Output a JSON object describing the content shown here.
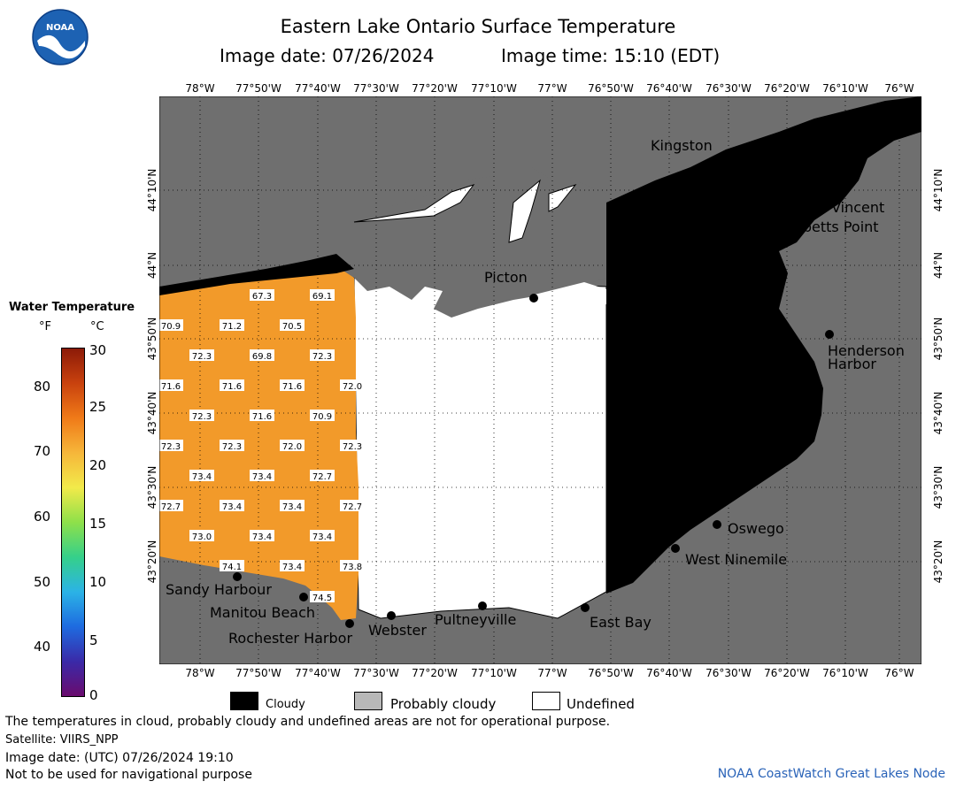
{
  "header": {
    "title": "Eastern Lake Ontario Surface Temperature",
    "image_date": "Image date: 07/26/2024",
    "image_time": "Image time: 15:10 (EDT)"
  },
  "logo": {
    "text": "NOAA",
    "icon": "noaa-logo-icon"
  },
  "axes": {
    "longitudes": [
      "78°W",
      "77°50'W",
      "77°40'W",
      "77°30'W",
      "77°20'W",
      "77°10'W",
      "77°W",
      "76°50'W",
      "76°40'W",
      "76°30'W",
      "76°20'W",
      "76°10'W",
      "76°W"
    ],
    "latitudes": [
      "44°10'N",
      "44°N",
      "43°50'N",
      "43°40'N",
      "43°30'N",
      "43°20'N"
    ]
  },
  "places": [
    {
      "name": "Kingston"
    },
    {
      "name": "Cape Vincent"
    },
    {
      "name": "Tibbetts Point"
    },
    {
      "name": "Picton"
    },
    {
      "name": "Henderson"
    },
    {
      "name": "Harbor"
    },
    {
      "name": "Oswego"
    },
    {
      "name": "West Ninemile"
    },
    {
      "name": "East Bay"
    },
    {
      "name": "Pultneyville"
    },
    {
      "name": "Webster"
    },
    {
      "name": "Rochester Harbor"
    },
    {
      "name": "Manitou Beach"
    },
    {
      "name": "Sandy Harbour"
    }
  ],
  "temperatures": [
    "67.3",
    "69.1",
    "70.9",
    "71.2",
    "70.5",
    "72.3",
    "69.8",
    "72.3",
    "71.6",
    "71.6",
    "71.6",
    "72.0",
    "72.3",
    "71.6",
    "70.9",
    "72.3",
    "72.3",
    "72.0",
    "72.3",
    "73.4",
    "73.4",
    "72.7",
    "72.7",
    "73.4",
    "73.4",
    "72.7",
    "73.0",
    "73.4",
    "73.4",
    "74.1",
    "73.4",
    "73.8",
    "74.5"
  ],
  "legend": {
    "title": "Water Temperature",
    "unit_f": "°F",
    "unit_c": "°C",
    "f_ticks": [
      "80",
      "70",
      "60",
      "50",
      "40"
    ],
    "c_ticks": [
      "30",
      "25",
      "20",
      "15",
      "10",
      "5",
      "0"
    ],
    "colors": [
      "#6a0b6e",
      "#3a2aa8",
      "#1e6be0",
      "#2bb3e6",
      "#35d08a",
      "#8ee04a",
      "#f2ea4a",
      "#f6b63a",
      "#f07a18",
      "#c9420e",
      "#8c1a08"
    ]
  },
  "key": {
    "cloudy": "Cloudy",
    "probably_cloudy": "Probably cloudy",
    "undefined": "Undefined",
    "cloudy_color": "#000000",
    "probably_cloudy_color": "#b8b8b8",
    "undefined_color": "#ffffff"
  },
  "footer": {
    "line1": "The temperatures in cloud, probably cloudy and undefined areas are not for operational purpose.",
    "line2": "Satellite: VIIRS_NPP",
    "line3": "Image date: (UTC) 07/26/2024  19:10",
    "line4": "Not to be used for navigational purpose",
    "credit": "NOAA CoastWatch Great Lakes Node"
  },
  "colors": {
    "land": "#6f6f6f",
    "water_warm": "#f29a2a",
    "credit": "#2a63b8"
  }
}
